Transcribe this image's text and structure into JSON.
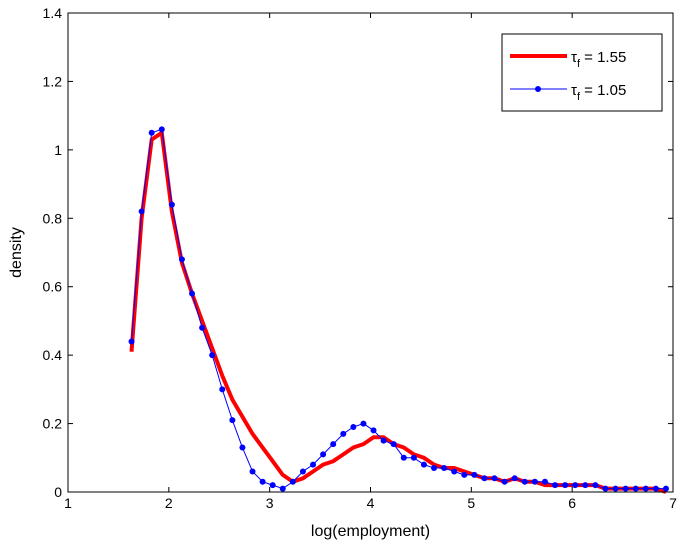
{
  "chart_data": {
    "type": "line",
    "title": "",
    "xlabel": "log(employment)",
    "ylabel": "density",
    "xlim": [
      1,
      7
    ],
    "ylim": [
      0,
      1.4
    ],
    "xticks": [
      1,
      2,
      3,
      4,
      5,
      6,
      7
    ],
    "yticks": [
      0,
      0.2,
      0.4,
      0.6,
      0.8,
      1,
      1.2,
      1.4
    ],
    "xtick_labels": [
      "1",
      "2",
      "3",
      "4",
      "5",
      "6",
      "7"
    ],
    "ytick_labels": [
      "0",
      "0.2",
      "0.4",
      "0.6",
      "0.8",
      "1",
      "1.2",
      "1.4"
    ],
    "grid": false,
    "legend_position": "top-right",
    "series": [
      {
        "name": "τf = 1.55",
        "legend_symbol": "τ",
        "legend_subscript": "f",
        "legend_value": " = 1.55",
        "color": "#ff0000",
        "marker": "none",
        "x": [
          1.63,
          1.73,
          1.83,
          1.93,
          2.03,
          2.13,
          2.23,
          2.33,
          2.43,
          2.53,
          2.63,
          2.73,
          2.83,
          2.93,
          3.03,
          3.13,
          3.23,
          3.33,
          3.43,
          3.53,
          3.63,
          3.73,
          3.83,
          3.93,
          4.03,
          4.13,
          4.23,
          4.33,
          4.43,
          4.53,
          4.63,
          4.73,
          4.83,
          4.93,
          5.03,
          5.13,
          5.23,
          5.33,
          5.43,
          5.53,
          5.63,
          5.73,
          5.83,
          5.93,
          6.03,
          6.13,
          6.23,
          6.33,
          6.43,
          6.53,
          6.63,
          6.73,
          6.83,
          6.93
        ],
        "y": [
          0.41,
          0.8,
          1.03,
          1.05,
          0.82,
          0.67,
          0.58,
          0.5,
          0.42,
          0.34,
          0.27,
          0.22,
          0.17,
          0.13,
          0.09,
          0.05,
          0.03,
          0.04,
          0.06,
          0.08,
          0.09,
          0.11,
          0.13,
          0.14,
          0.16,
          0.16,
          0.14,
          0.13,
          0.11,
          0.1,
          0.08,
          0.07,
          0.07,
          0.06,
          0.05,
          0.04,
          0.04,
          0.03,
          0.04,
          0.03,
          0.03,
          0.02,
          0.02,
          0.02,
          0.02,
          0.02,
          0.02,
          0.01,
          0.01,
          0.01,
          0.01,
          0.01,
          0.01,
          0.0
        ]
      },
      {
        "name": "τf = 1.05",
        "legend_symbol": "τ",
        "legend_subscript": "f",
        "legend_value": " = 1.05",
        "color": "#0000ff",
        "marker": "dot",
        "x": [
          1.63,
          1.73,
          1.83,
          1.93,
          2.03,
          2.13,
          2.23,
          2.33,
          2.43,
          2.53,
          2.63,
          2.73,
          2.83,
          2.93,
          3.03,
          3.13,
          3.23,
          3.33,
          3.43,
          3.53,
          3.63,
          3.73,
          3.83,
          3.93,
          4.03,
          4.13,
          4.23,
          4.33,
          4.43,
          4.53,
          4.63,
          4.73,
          4.83,
          4.93,
          5.03,
          5.13,
          5.23,
          5.33,
          5.43,
          5.53,
          5.63,
          5.73,
          5.83,
          5.93,
          6.03,
          6.13,
          6.23,
          6.33,
          6.43,
          6.53,
          6.63,
          6.73,
          6.83,
          6.93
        ],
        "y": [
          0.44,
          0.82,
          1.05,
          1.06,
          0.84,
          0.68,
          0.58,
          0.48,
          0.4,
          0.3,
          0.21,
          0.13,
          0.06,
          0.03,
          0.02,
          0.01,
          0.03,
          0.06,
          0.08,
          0.11,
          0.14,
          0.17,
          0.19,
          0.2,
          0.18,
          0.15,
          0.14,
          0.1,
          0.1,
          0.08,
          0.07,
          0.07,
          0.06,
          0.05,
          0.05,
          0.04,
          0.04,
          0.03,
          0.04,
          0.03,
          0.03,
          0.03,
          0.02,
          0.02,
          0.02,
          0.02,
          0.02,
          0.01,
          0.01,
          0.01,
          0.01,
          0.01,
          0.01,
          0.01
        ]
      }
    ]
  }
}
